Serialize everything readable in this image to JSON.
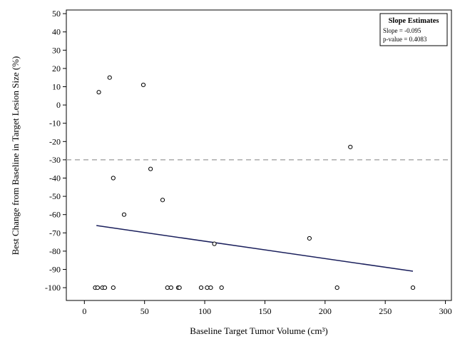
{
  "chart_data": {
    "type": "scatter",
    "xlabel": "Baseline Target Tumor Volume (cm³)",
    "ylabel": "Best Change from Baseline in Target Lesion Size (%)",
    "xlim": [
      -15,
      305
    ],
    "ylim": [
      -107,
      52
    ],
    "xticks": [
      0,
      50,
      100,
      150,
      200,
      250,
      300
    ],
    "yticks": [
      50,
      40,
      30,
      20,
      10,
      0,
      -10,
      -20,
      -30,
      -40,
      -50,
      -60,
      -70,
      -80,
      -90,
      -100
    ],
    "reference_line": {
      "y": -30,
      "style": "dashed",
      "color": "#aaaaaa"
    },
    "points": [
      {
        "x": 12,
        "y": 7
      },
      {
        "x": 21,
        "y": 15
      },
      {
        "x": 49,
        "y": 11
      },
      {
        "x": 221,
        "y": -23
      },
      {
        "x": 24,
        "y": -40
      },
      {
        "x": 55,
        "y": -35
      },
      {
        "x": 65,
        "y": -52
      },
      {
        "x": 33,
        "y": -60
      },
      {
        "x": 187,
        "y": -73
      },
      {
        "x": 108,
        "y": -76
      },
      {
        "x": 9,
        "y": -100
      },
      {
        "x": 11,
        "y": -100
      },
      {
        "x": 15,
        "y": -100
      },
      {
        "x": 17,
        "y": -100
      },
      {
        "x": 24,
        "y": -100
      },
      {
        "x": 69,
        "y": -100
      },
      {
        "x": 72,
        "y": -100
      },
      {
        "x": 78,
        "y": -100
      },
      {
        "x": 79,
        "y": -100
      },
      {
        "x": 97,
        "y": -100
      },
      {
        "x": 102,
        "y": -100
      },
      {
        "x": 105,
        "y": -100
      },
      {
        "x": 114,
        "y": -100
      },
      {
        "x": 210,
        "y": -100
      },
      {
        "x": 273,
        "y": -100
      }
    ],
    "regression_line": {
      "x": [
        10,
        273
      ],
      "y": [
        -66,
        -91
      ],
      "color": "#1a1f5c"
    },
    "legend": {
      "position": "top-right",
      "title": "Slope Estimates",
      "lines": [
        "Slope = -0.095",
        "p-value = 0.4083"
      ]
    },
    "grid": false
  }
}
